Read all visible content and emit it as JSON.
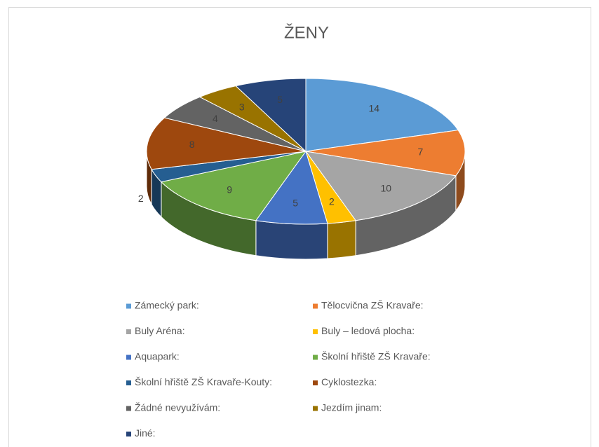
{
  "chart_data": {
    "type": "pie3d",
    "title": "ŽENY",
    "categories": [
      "Zámecký park:",
      "Tělocvična ZŠ Kravaře:",
      "Buly Aréna:",
      "Buly – ledová plocha:",
      "Aquapark:",
      "Školní hřiště ZŠ Kravaře:",
      "Školní hřiště ZŠ Kravaře-Kouty:",
      "Cyklostezka:",
      "Žádné nevyužívám:",
      "Jezdím jinam:",
      "Jiné:"
    ],
    "values": [
      14,
      7,
      10,
      2,
      5,
      9,
      2,
      8,
      4,
      3,
      5
    ],
    "colors": [
      "#5b9bd5",
      "#ed7d31",
      "#a5a5a5",
      "#ffc000",
      "#4472c4",
      "#70ad47",
      "#255e91",
      "#9e480e",
      "#636363",
      "#997300",
      "#264478"
    ],
    "legend": "bottom"
  }
}
